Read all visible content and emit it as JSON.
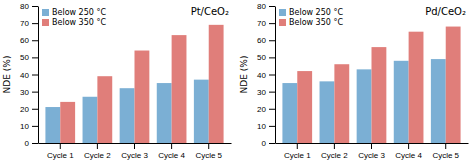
{
  "chart_data": [
    {
      "type": "bar",
      "title": "Pt/CeO₂",
      "categories": [
        "Cycle 1",
        "Cycle 2",
        "Cycle 3",
        "Cycle 4",
        "Cycle 5"
      ],
      "series": [
        {
          "name": "Below 250 °C",
          "color": "#7bafd4",
          "values": [
            21,
            27,
            32,
            35,
            37
          ]
        },
        {
          "name": "Below 350 °C",
          "color": "#e07e7a",
          "values": [
            24,
            39,
            54,
            63,
            69
          ]
        }
      ],
      "y_label": "NDE (%)",
      "ylim": [
        0,
        80
      ],
      "yticks": [
        0,
        10,
        20,
        30,
        40,
        50,
        60,
        70,
        80
      ],
      "legend": "upper left",
      "grid": false
    },
    {
      "type": "bar",
      "title": "Pd/CeO₂",
      "categories": [
        "Cycle 1",
        "Cycle 2",
        "Cycle 3",
        "Cycle 4",
        "Cycle 5"
      ],
      "series": [
        {
          "name": "Below 250 °C",
          "color": "#7bafd4",
          "values": [
            35,
            36,
            43,
            48,
            49
          ]
        },
        {
          "name": "Below 350 °C",
          "color": "#e07e7a",
          "values": [
            42,
            46,
            56,
            65,
            68
          ]
        }
      ],
      "y_label": "NDE (%)",
      "ylim": [
        0,
        80
      ],
      "yticks": [
        0,
        10,
        20,
        30,
        40,
        50,
        60,
        70,
        80
      ],
      "legend": "upper left",
      "grid": false
    }
  ]
}
